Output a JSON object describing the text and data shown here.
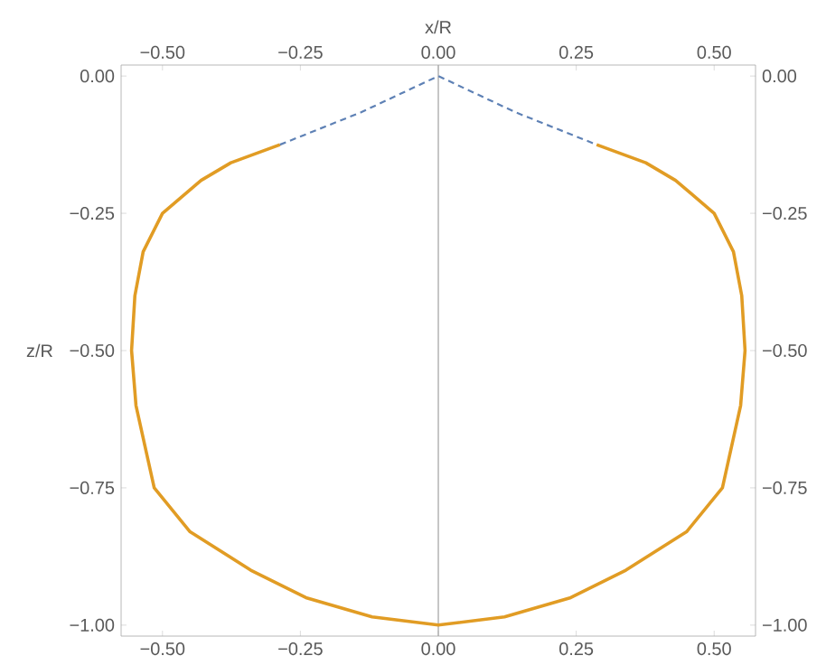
{
  "chart_data": {
    "type": "line",
    "x2label": "x/R",
    "ylabel": "z/R",
    "xlim": [
      -0.575,
      0.575
    ],
    "ylim": [
      -1.02,
      0.02
    ],
    "x2lim": [
      -0.575,
      0.575
    ],
    "y2lim": [
      -1.02,
      0.02
    ],
    "xticks": [
      {
        "value": -0.5,
        "label": "−0.50"
      },
      {
        "value": -0.25,
        "label": "−0.25"
      },
      {
        "value": 0,
        "label": "0.00"
      },
      {
        "value": 0.25,
        "label": "0.25"
      },
      {
        "value": 0.5,
        "label": "0.50"
      }
    ],
    "x2ticks": [
      {
        "value": -0.5,
        "label": "−0.50"
      },
      {
        "value": -0.25,
        "label": "−0.25"
      },
      {
        "value": 0,
        "label": "0.00"
      },
      {
        "value": 0.25,
        "label": "0.25"
      },
      {
        "value": 0.5,
        "label": "0.50"
      }
    ],
    "yticks": [
      {
        "value": 0,
        "label": "0.00"
      },
      {
        "value": -0.25,
        "label": "−0.25"
      },
      {
        "value": -0.5,
        "label": "−0.50"
      },
      {
        "value": -0.75,
        "label": "−0.75"
      },
      {
        "value": -1,
        "label": "−1.00"
      }
    ],
    "y2ticks": [
      {
        "value": 0,
        "label": "0.00"
      },
      {
        "value": -0.25,
        "label": "−0.25"
      },
      {
        "value": -0.5,
        "label": "−0.50"
      },
      {
        "value": -0.75,
        "label": "−0.75"
      },
      {
        "value": -1,
        "label": "−1.00"
      }
    ],
    "ref_lines": [
      {
        "axis": "x",
        "value": 0,
        "color": "#a0a0a0",
        "line_style": "solid"
      }
    ],
    "series": [
      {
        "color": "#e19c24",
        "line_style": "solid",
        "x": [
          -0.287,
          -0.376,
          -0.43,
          -0.5,
          -0.535,
          -0.55,
          -0.556,
          -0.548,
          -0.515,
          -0.45,
          -0.34,
          -0.24,
          -0.12,
          0,
          0.12,
          0.24,
          0.34,
          0.45,
          0.515,
          0.548,
          0.556,
          0.55,
          0.535,
          0.5,
          0.43,
          0.376,
          0.287
        ],
        "values": [
          -0.125,
          -0.158,
          -0.19,
          -0.25,
          -0.32,
          -0.4,
          -0.5,
          -0.6,
          -0.75,
          -0.83,
          -0.9,
          -0.95,
          -0.985,
          -1,
          -0.985,
          -0.95,
          -0.9,
          -0.83,
          -0.75,
          -0.6,
          -0.5,
          -0.4,
          -0.32,
          -0.25,
          -0.19,
          -0.158,
          -0.125
        ]
      },
      {
        "color": "#5e81b5",
        "line_style": "dashed",
        "x": [
          -0.287,
          -0.14,
          0,
          0.14,
          0.287
        ],
        "values": [
          -0.125,
          -0.066,
          0,
          -0.066,
          -0.125
        ]
      }
    ]
  }
}
